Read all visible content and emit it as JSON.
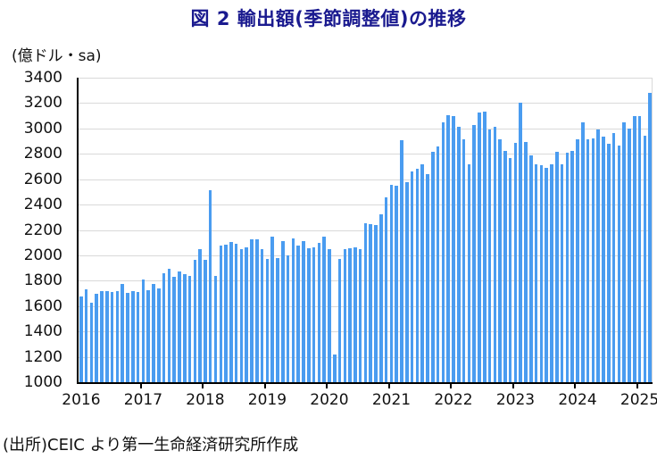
{
  "figure": {
    "title": "図 2 輸出額(季節調整値)の推移",
    "unit_label": "(億ドル・sa)",
    "source_note": "(出所)CEIC より第一生命経済研究所作成"
  },
  "colors": {
    "title_text": "#1a1a8f",
    "bar": "#4a9cf0",
    "gridline": "#d9d9d9",
    "axis": "#000000",
    "label_text": "#111111"
  },
  "chart_data": {
    "type": "bar",
    "title": "図 2 輸出額(季節調整値)の推移",
    "ylabel": "(億ドル・sa)",
    "xlabel": "",
    "x_frequency": "monthly",
    "x_start": "2016-01",
    "x_end": "2025-03",
    "xtick_labels": [
      "2016",
      "2017",
      "2018",
      "2019",
      "2020",
      "2021",
      "2022",
      "2023",
      "2024",
      "2025"
    ],
    "ytick_labels": [
      "1000",
      "1200",
      "1400",
      "1600",
      "1800",
      "2000",
      "2200",
      "2400",
      "2600",
      "2800",
      "3000",
      "3200",
      "3400"
    ],
    "ylim": [
      1000,
      3400
    ],
    "ytick_step": 200,
    "grid": "horizontal",
    "legend": "none",
    "series": [
      {
        "name": "輸出額(季節調整値)",
        "values": [
          1675,
          1730,
          1630,
          1700,
          1715,
          1720,
          1710,
          1720,
          1775,
          1705,
          1720,
          1710,
          1810,
          1725,
          1775,
          1740,
          1860,
          1895,
          1830,
          1870,
          1855,
          1835,
          1965,
          2050,
          1965,
          2510,
          1835,
          2075,
          2085,
          2105,
          2090,
          2050,
          2060,
          2125,
          2125,
          2050,
          1970,
          2145,
          1980,
          2110,
          2000,
          2135,
          2075,
          2110,
          2055,
          2065,
          2095,
          2150,
          2050,
          1215,
          1970,
          2050,
          2055,
          2065,
          2050,
          2250,
          2245,
          2240,
          2325,
          2460,
          2555,
          2545,
          2910,
          2580,
          2660,
          2685,
          2720,
          2640,
          2815,
          2860,
          3050,
          3105,
          3095,
          3010,
          2915,
          2715,
          3030,
          3125,
          3130,
          2990,
          3010,
          2915,
          2820,
          2765,
          2885,
          3205,
          2890,
          2790,
          2715,
          2710,
          2690,
          2720,
          2815,
          2715,
          2810,
          2820,
          2915,
          3045,
          2915,
          2920,
          2990,
          2935,
          2880,
          2965,
          2865,
          3045,
          3000,
          3100,
          3095,
          2940,
          3280
        ]
      }
    ]
  }
}
